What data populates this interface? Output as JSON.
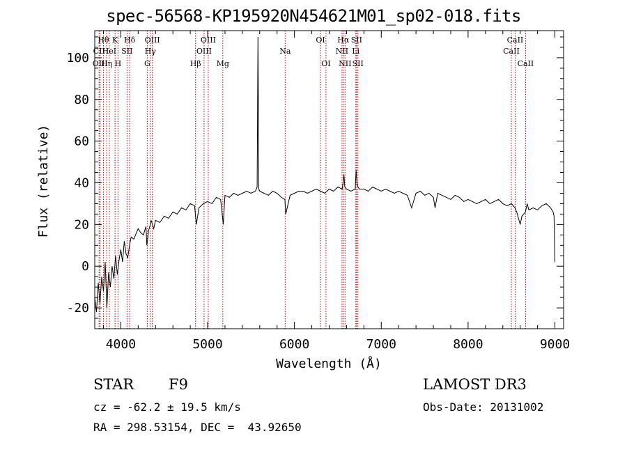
{
  "chart_data": {
    "type": "line",
    "title": "spec-56568-KP195920N454621M01_sp02-018.fits",
    "xlabel": "Wavelength (Å)",
    "ylabel": "Flux (relative)",
    "xlim": [
      3700,
      9100
    ],
    "ylim": [
      -30,
      113
    ],
    "xticks": [
      4000,
      5000,
      6000,
      7000,
      8000,
      9000
    ],
    "yticks": [
      -20,
      0,
      20,
      40,
      60,
      80,
      100
    ],
    "spectrum": {
      "name": "flux",
      "x": [
        3700,
        3720,
        3740,
        3760,
        3780,
        3800,
        3820,
        3840,
        3860,
        3880,
        3900,
        3920,
        3940,
        3960,
        3980,
        4000,
        4020,
        4040,
        4060,
        4080,
        4100,
        4120,
        4150,
        4180,
        4200,
        4230,
        4260,
        4290,
        4300,
        4320,
        4340,
        4350,
        4380,
        4400,
        4450,
        4500,
        4550,
        4600,
        4650,
        4700,
        4750,
        4800,
        4850,
        4870,
        4900,
        4950,
        5000,
        5050,
        5100,
        5150,
        5180,
        5200,
        5250,
        5300,
        5350,
        5400,
        5450,
        5500,
        5550,
        5570,
        5580,
        5590,
        5600,
        5650,
        5700,
        5750,
        5800,
        5850,
        5890,
        5900,
        5950,
        6000,
        6050,
        6100,
        6150,
        6200,
        6250,
        6300,
        6350,
        6400,
        6450,
        6500,
        6550,
        6560,
        6570,
        6580,
        6600,
        6650,
        6700,
        6710,
        6720,
        6730,
        6750,
        6800,
        6850,
        6900,
        6950,
        7000,
        7050,
        7100,
        7150,
        7200,
        7250,
        7300,
        7350,
        7400,
        7450,
        7500,
        7550,
        7600,
        7620,
        7650,
        7700,
        7750,
        7800,
        7850,
        7900,
        7950,
        8000,
        8050,
        8100,
        8150,
        8200,
        8250,
        8300,
        8350,
        8400,
        8450,
        8500,
        8540,
        8560,
        8600,
        8620,
        8660,
        8680,
        8700,
        8750,
        8800,
        8850,
        8900,
        8950,
        8980,
        8990,
        9000
      ],
      "values": [
        -15,
        -22,
        -8,
        -18,
        -5,
        -12,
        2,
        -20,
        -3,
        -10,
        0,
        -6,
        5,
        -4,
        3,
        8,
        2,
        12,
        6,
        4,
        10,
        14,
        13,
        16,
        18,
        16,
        15,
        19,
        10,
        17,
        20,
        22,
        18,
        22,
        21,
        24,
        23,
        26,
        25,
        28,
        27,
        30,
        29,
        20,
        28,
        30,
        31,
        30,
        33,
        32,
        20,
        34,
        33,
        35,
        34,
        35,
        36,
        35,
        36,
        38,
        110,
        37,
        36,
        35,
        34,
        36,
        35,
        33,
        32,
        25,
        34,
        35,
        36,
        36,
        35,
        36,
        37,
        36,
        35,
        37,
        36,
        38,
        37,
        40,
        44,
        38,
        37,
        36,
        37,
        46,
        40,
        38,
        37,
        37,
        36,
        38,
        37,
        36,
        37,
        36,
        35,
        36,
        35,
        34,
        28,
        35,
        36,
        34,
        35,
        33,
        28,
        35,
        34,
        33,
        32,
        34,
        33,
        31,
        32,
        31,
        30,
        31,
        32,
        30,
        31,
        32,
        30,
        29,
        30,
        28,
        26,
        20,
        24,
        26,
        30,
        27,
        28,
        27,
        29,
        30,
        28,
        26,
        24,
        2
      ]
    },
    "line_markers": [
      {
        "label": "CII",
        "x": 3750,
        "row": 1
      },
      {
        "label": "OIII",
        "x": 3762,
        "row": 2
      },
      {
        "label": "Hθ",
        "x": 3800,
        "row": 0
      },
      {
        "label": "Hη",
        "x": 3837,
        "row": 2
      },
      {
        "label": "HeI",
        "x": 3868,
        "row": 1
      },
      {
        "label": "K",
        "x": 3934,
        "row": 0
      },
      {
        "label": "H",
        "x": 3968,
        "row": 2
      },
      {
        "label": "SII",
        "x": 4072,
        "row": 1
      },
      {
        "label": "Hδ",
        "x": 4102,
        "row": 0
      },
      {
        "label": "G",
        "x": 4305,
        "row": 2
      },
      {
        "label": "Hγ",
        "x": 4340,
        "row": 1
      },
      {
        "label": "OIII",
        "x": 4363,
        "row": 0
      },
      {
        "label": "Hβ",
        "x": 4861,
        "row": 2
      },
      {
        "label": "OIII",
        "x": 4959,
        "row": 1
      },
      {
        "label": "OIII",
        "x": 5007,
        "row": 0
      },
      {
        "label": "Mg",
        "x": 5175,
        "row": 2
      },
      {
        "label": "Na",
        "x": 5893,
        "row": 1
      },
      {
        "label": "OI",
        "x": 6300,
        "row": 0
      },
      {
        "label": "OI",
        "x": 6363,
        "row": 2
      },
      {
        "label": "NII",
        "x": 6548,
        "row": 1
      },
      {
        "label": "Hα",
        "x": 6563,
        "row": 0
      },
      {
        "label": "NII",
        "x": 6583,
        "row": 2
      },
      {
        "label": "Li",
        "x": 6707,
        "row": 1
      },
      {
        "label": "SII",
        "x": 6716,
        "row": 0
      },
      {
        "label": "SII",
        "x": 6731,
        "row": 2
      },
      {
        "label": "CaII",
        "x": 8498,
        "row": 1
      },
      {
        "label": "CaII",
        "x": 8542,
        "row": 0
      },
      {
        "label": "CaII",
        "x": 8662,
        "row": 2
      }
    ],
    "grid": false,
    "legend": "none"
  },
  "info": {
    "class": "STAR",
    "subclass": "F9",
    "survey": "LAMOST DR3",
    "redshift": "cz = -62.2 ± 19.5 km/s",
    "obs_date": "Obs-Date: 20131002",
    "coords": "RA = 298.53154, DEC =  43.92650"
  },
  "colors": {
    "marker": "#cc0000",
    "axis": "#000000",
    "spectrum": "#000000"
  }
}
